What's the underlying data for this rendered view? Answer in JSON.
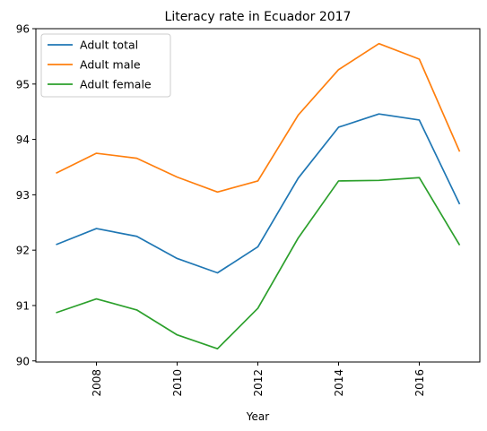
{
  "chart_data": {
    "type": "line",
    "title": "Literacy rate in Ecuador 2017",
    "xlabel": "Year",
    "ylabel": "",
    "x": [
      2007,
      2008,
      2009,
      2010,
      2011,
      2012,
      2013,
      2014,
      2015,
      2016,
      2017
    ],
    "xlim": [
      2006.5,
      2017.5
    ],
    "ylim": [
      89.98,
      96.0
    ],
    "xticks": [
      2008,
      2010,
      2012,
      2014,
      2016
    ],
    "yticks": [
      90,
      91,
      92,
      93,
      94,
      95,
      96
    ],
    "grid": false,
    "legend_position": "top-left",
    "series": [
      {
        "name": "Adult total",
        "color": "#1f77b4",
        "values": [
          92.1,
          92.39,
          92.25,
          91.85,
          91.59,
          92.06,
          93.3,
          94.22,
          94.46,
          94.35,
          92.83
        ]
      },
      {
        "name": "Adult male",
        "color": "#ff7f0e",
        "values": [
          93.39,
          93.75,
          93.66,
          93.32,
          93.05,
          93.25,
          94.44,
          95.26,
          95.73,
          95.45,
          93.78
        ]
      },
      {
        "name": "Adult female",
        "color": "#2ca02c",
        "values": [
          90.87,
          91.12,
          90.92,
          90.47,
          90.22,
          90.95,
          92.22,
          93.25,
          93.26,
          93.31,
          92.09
        ]
      }
    ]
  }
}
